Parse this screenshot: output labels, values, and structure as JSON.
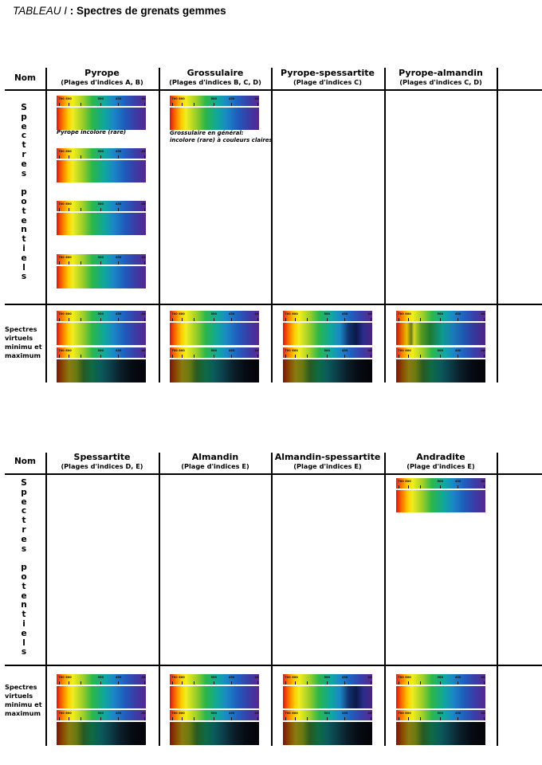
{
  "title": {
    "italic": "TABLEAU I",
    "rest": " : Spectres de grenats gemmes"
  },
  "row_labels": {
    "nom": "Nom",
    "potentiels_letters": [
      "S",
      "p",
      "e",
      "c",
      "t",
      "r",
      "e",
      "s",
      "",
      "p",
      "o",
      "t",
      "e",
      "n",
      "t",
      "i",
      "e",
      "l",
      "s"
    ],
    "virtuels": "Spectres virtuels minimu et maximum"
  },
  "tables": [
    {
      "columns": [
        {
          "name": "Pyrope",
          "sub": "(Plages d'indices A, B)"
        },
        {
          "name": "Grossulaire",
          "sub": "(Plages d'indices B, C, D)"
        },
        {
          "name": "Pyrope-spessartite",
          "sub": "(Plage d'indices C)"
        },
        {
          "name": "Pyrope-almandin",
          "sub": "(Plages d'indices C, D)"
        }
      ]
    },
    {
      "columns": [
        {
          "name": "Spessartite",
          "sub": "(Plages d'indices D, E)"
        },
        {
          "name": "Almandin",
          "sub": "(Plage d'indices E)"
        },
        {
          "name": "Almandin-spessartite",
          "sub": "(Plage d'indices E)"
        },
        {
          "name": "Andradite",
          "sub": "(Plage d'indices E)"
        }
      ]
    }
  ],
  "captions": {
    "pyrope": "Pyrope incolore (rare)",
    "grossulaire_1": "Grossulaire en général:",
    "grossulaire_2": "incolore (rare) à couleurs claires"
  },
  "scale_labels": [
    "700",
    "600",
    "500",
    "450",
    "400"
  ]
}
